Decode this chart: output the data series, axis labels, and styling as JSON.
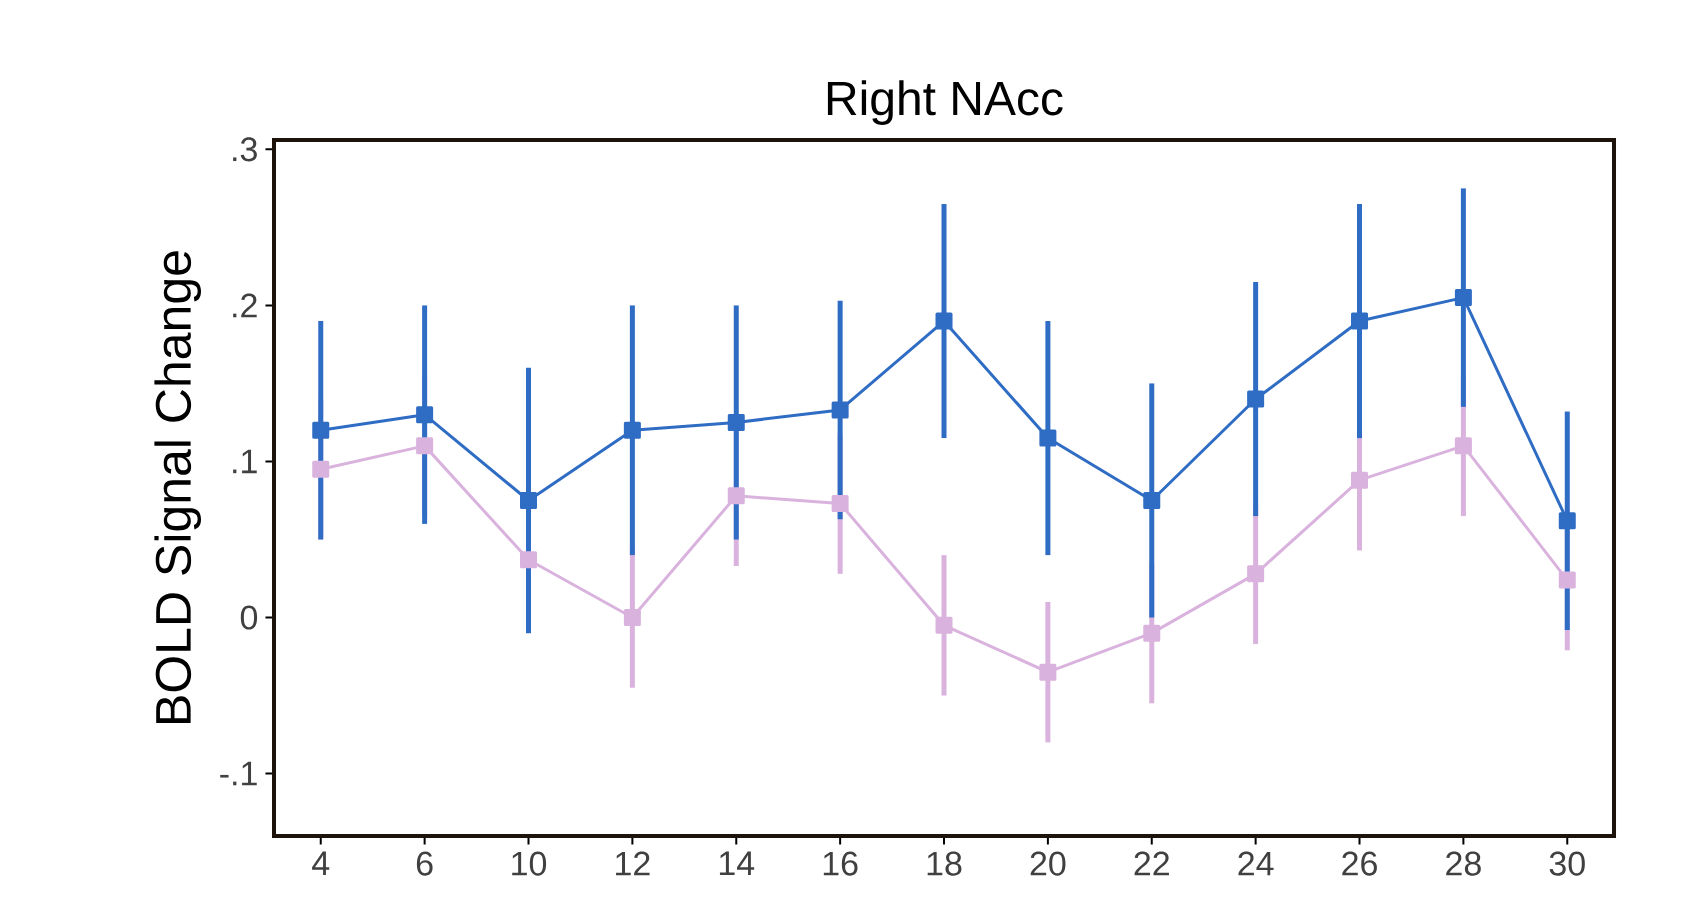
{
  "chart_data": {
    "type": "line",
    "title": "Right NAcc",
    "ylabel": "BOLD Signal Change",
    "categories": [
      "4",
      "6",
      "10",
      "12",
      "14",
      "16",
      "18",
      "20",
      "22",
      "24",
      "26",
      "28",
      "30"
    ],
    "ylim": [
      -0.14,
      0.306
    ],
    "yticks": [
      {
        "value": -0.1,
        "label": "-.1"
      },
      {
        "value": 0,
        "label": "0"
      },
      {
        "value": 0.1,
        "label": ".1"
      },
      {
        "value": 0.2,
        "label": ".2"
      },
      {
        "value": 0.3,
        "label": ".3"
      }
    ],
    "marker": "square",
    "line_style": "solid",
    "grid": false,
    "series": [
      {
        "color": "#d9b3dd",
        "values": [
          0.095,
          0.11,
          0.037,
          0.0,
          0.078,
          0.073,
          -0.005,
          -0.035,
          -0.01,
          0.028,
          0.088,
          0.11,
          0.024
        ],
        "errors": [
          0.045,
          0.045,
          0.045,
          0.045,
          0.045,
          0.045,
          0.045,
          0.045,
          0.045,
          0.045,
          0.045,
          0.045,
          0.045
        ]
      },
      {
        "color": "#2f6cc4",
        "values": [
          0.12,
          0.13,
          0.075,
          0.12,
          0.125,
          0.133,
          0.19,
          0.115,
          0.075,
          0.14,
          0.19,
          0.205,
          0.062
        ],
        "errors": [
          0.07,
          0.07,
          0.085,
          0.08,
          0.075,
          0.07,
          0.075,
          0.075,
          0.075,
          0.075,
          0.075,
          0.07,
          0.07
        ]
      }
    ]
  }
}
